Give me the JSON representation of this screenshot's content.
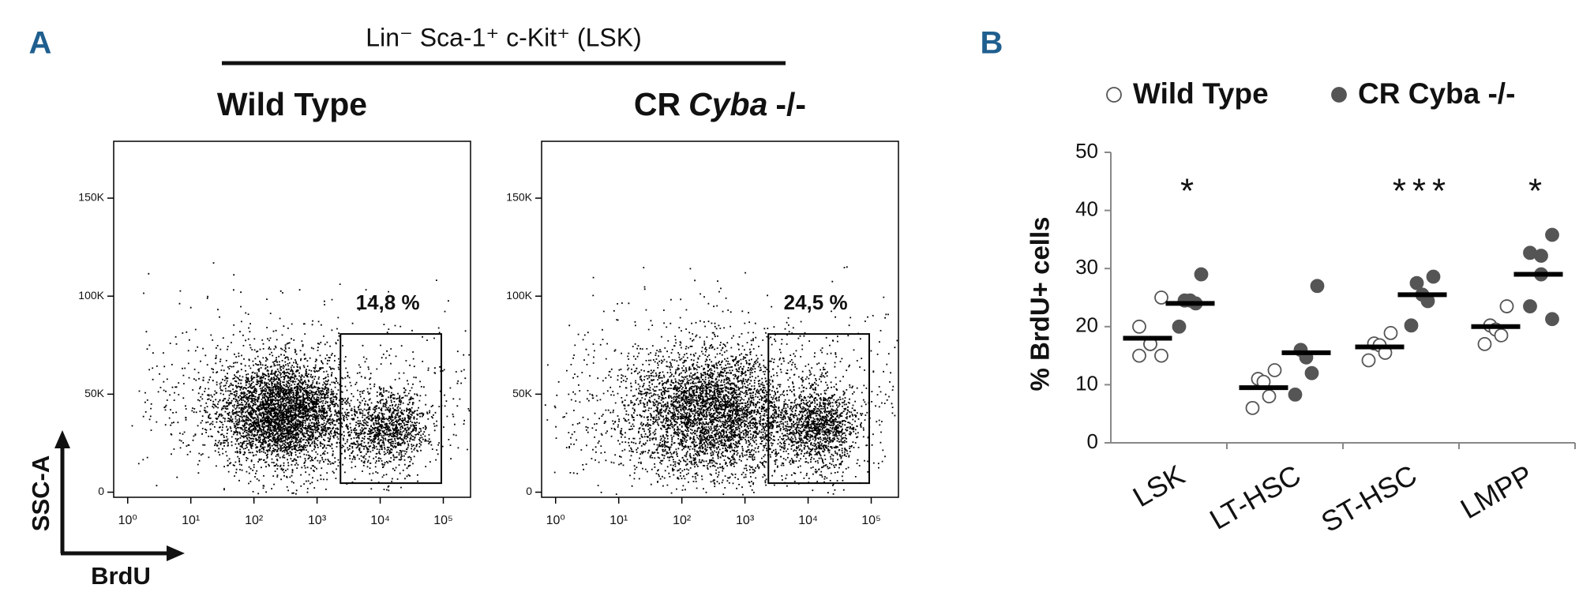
{
  "chart_data": [
    {
      "type": "scatter",
      "panel_label": "A",
      "header": "Lin⁻ Sca-1⁺ c-Kit⁺ (LSK)",
      "x_label": "BrdU",
      "y_label": "SSC-A",
      "log_x": true,
      "xlim": [
        0.6,
        270000
      ],
      "ylim": [
        -2600,
        179000
      ],
      "xticks": [
        {
          "value": 1,
          "label": "10⁰"
        },
        {
          "value": 10,
          "label": "10¹"
        },
        {
          "value": 100,
          "label": "10²"
        },
        {
          "value": 1000,
          "label": "10³"
        },
        {
          "value": 10000,
          "label": "10⁴"
        },
        {
          "value": 100000,
          "label": "10⁵"
        }
      ],
      "yticks": [
        0,
        {
          "value": 50000,
          "label": "50K"
        },
        {
          "value": 100000,
          "label": "100K"
        },
        {
          "value": 150000,
          "label": "150K"
        }
      ],
      "gate_x": [
        2350,
        93000
      ],
      "gate_y": [
        4600,
        80700
      ],
      "panels": [
        {
          "title": [
            "Wild Type"
          ],
          "values": [
            14.8
          ],
          "value_labels": [
            "14,8 %"
          ]
        },
        {
          "title": [
            "CR",
            "Cyba",
            "-/-"
          ],
          "values": [
            24.5
          ],
          "value_labels": [
            "24,5 %"
          ]
        }
      ]
    },
    {
      "type": "strip",
      "panel_label": "B",
      "y_label": "% BrdU+ cells",
      "categories": [
        "LSK",
        "LT-HSC",
        "ST-HSC",
        "LMPP"
      ],
      "ylim": [
        0,
        50
      ],
      "yticks": [
        0,
        10,
        20,
        30,
        40,
        50
      ],
      "significance": [
        "*",
        null,
        "***",
        "*"
      ],
      "series": [
        {
          "name": "Wild Type",
          "color": "#ffffff",
          "values": [
            [
              25,
              20,
              17,
              17,
              15,
              15
            ],
            [
              12.5,
              11,
              10.5,
              8,
              6
            ],
            [
              18.9,
              17.1,
              16.8,
              15.5,
              14.2
            ],
            [
              23.5,
              20.2,
              19.5,
              18.5,
              17
            ]
          ],
          "means": [
            18,
            9.5,
            16.5,
            20
          ]
        },
        {
          "name": "CR Cyba -/-",
          "color": "#555555",
          "values": [
            [
              29,
              24.5,
              24.5,
              24,
              20
            ],
            [
              27,
              16,
              14.7,
              12,
              8.3
            ],
            [
              28.6,
              27.5,
              25.5,
              24.4,
              20.2
            ],
            [
              35.8,
              32.7,
              32.2,
              29,
              23.5,
              21.3
            ]
          ],
          "means": [
            24,
            15.5,
            25.5,
            29
          ]
        }
      ]
    }
  ]
}
